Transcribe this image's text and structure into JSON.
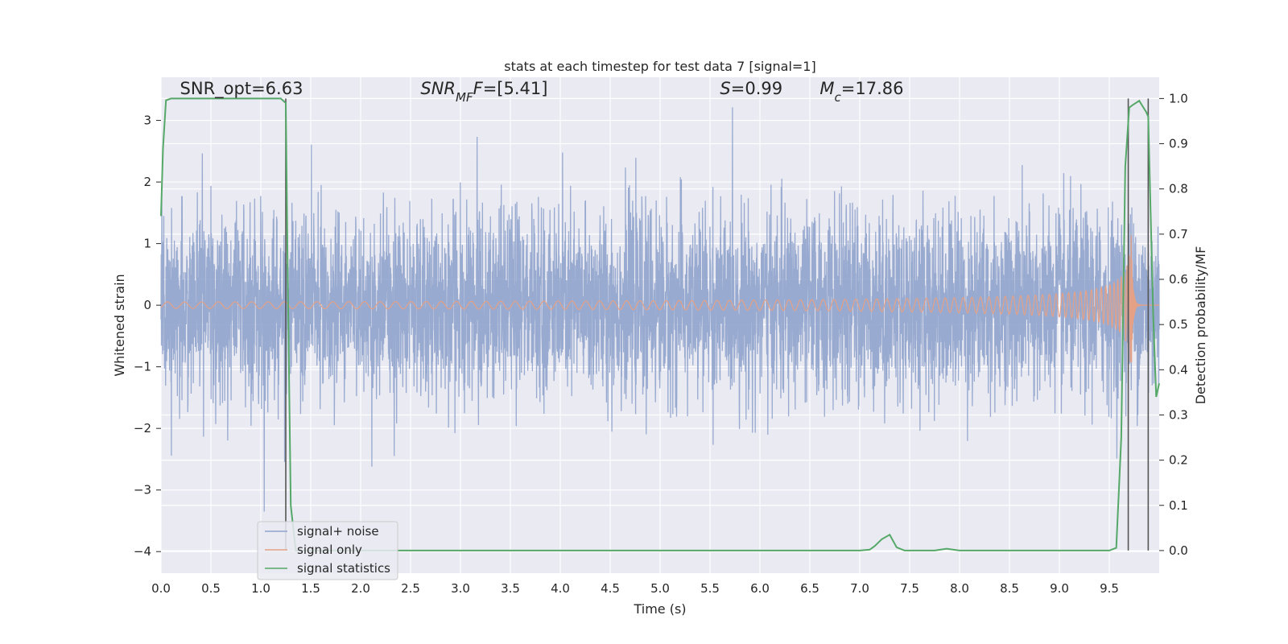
{
  "chart_data": {
    "type": "line",
    "title": "stats at each timestep for test data 7 [signal=1]",
    "xlabel": "Time (s)",
    "ylabel": "Whitened strain",
    "y2label": "Detection probability/MF",
    "xlim": [
      0,
      10
    ],
    "ylim": [
      -4.35,
      3.7
    ],
    "y2lim": [
      -0.05,
      1.047
    ],
    "grid": true,
    "x_ticks": [
      "0.0",
      "0.5",
      "1.0",
      "1.5",
      "2.0",
      "2.5",
      "3.0",
      "3.5",
      "4.0",
      "4.5",
      "5.0",
      "5.5",
      "6.0",
      "6.5",
      "7.0",
      "7.5",
      "8.0",
      "8.5",
      "9.0",
      "9.5"
    ],
    "x_tick_values": [
      0,
      0.5,
      1,
      1.5,
      2,
      2.5,
      3,
      3.5,
      4,
      4.5,
      5,
      5.5,
      6,
      6.5,
      7,
      7.5,
      8,
      8.5,
      9,
      9.5
    ],
    "y_ticks": [
      "−4",
      "−3",
      "−2",
      "−1",
      "0",
      "1",
      "2",
      "3"
    ],
    "y_tick_values": [
      -4,
      -3,
      -2,
      -1,
      0,
      1,
      2,
      3
    ],
    "y2_ticks": [
      "0.0",
      "0.1",
      "0.2",
      "0.3",
      "0.4",
      "0.5",
      "0.6",
      "0.7",
      "0.8",
      "0.9",
      "1.0"
    ],
    "y2_tick_values": [
      0,
      0.1,
      0.2,
      0.3,
      0.4,
      0.5,
      0.6,
      0.7,
      0.8,
      0.9,
      1.0
    ],
    "annotations": [
      {
        "parts": [
          {
            "t": "SNR_opt=6.63",
            "style": "normal"
          }
        ],
        "x": 0.19,
        "y2": 1.01
      },
      {
        "parts": [
          {
            "t": "SNR",
            "style": "italic"
          },
          {
            "t": "MF",
            "style": "italic-sub"
          },
          {
            "t": "F",
            "style": "italic"
          },
          {
            "t": "=[5.41]",
            "style": "normal"
          }
        ],
        "x": 2.6,
        "y2": 1.01
      },
      {
        "parts": [
          {
            "t": "S",
            "style": "italic"
          },
          {
            "t": "=0.99",
            "style": "normal"
          }
        ],
        "x": 5.6,
        "y2": 1.01
      },
      {
        "parts": [
          {
            "t": "M",
            "style": "italic"
          },
          {
            "t": "c",
            "style": "italic-sub"
          },
          {
            "t": "=17.86",
            "style": "normal"
          }
        ],
        "x": 6.6,
        "y2": 1.01
      }
    ],
    "vlines": [
      1.25,
      9.69,
      9.89
    ],
    "legend": {
      "placement": "lower-left",
      "entries": [
        {
          "name": "signal+ noise",
          "color": "#8fa3cc"
        },
        {
          "name": "signal only",
          "color": "#e5a186"
        },
        {
          "name": "signal statistics",
          "color": "#55a868"
        }
      ]
    },
    "series": [
      {
        "name": "signal+ noise",
        "axis": "left",
        "color": "#8fa3cc",
        "render": "dense-noise",
        "envelope_std": 0.75,
        "range": [
          -3.35,
          3.35
        ]
      },
      {
        "name": "signal only",
        "axis": "left",
        "color": "#e5a186",
        "render": "chirp",
        "chirp": {
          "t_merge": 9.72,
          "amp_max": 1.15,
          "x_start": 6.6
        }
      },
      {
        "name": "signal statistics",
        "axis": "right",
        "color": "#55a868",
        "x": [
          0.0,
          0.02,
          0.05,
          0.1,
          0.2,
          0.4,
          0.6,
          0.8,
          1.0,
          1.2,
          1.2,
          1.25,
          1.27,
          1.3,
          1.35,
          1.45,
          2.0,
          3.0,
          4.0,
          5.0,
          6.0,
          7.0,
          7.1,
          7.15,
          7.22,
          7.3,
          7.37,
          7.45,
          7.6,
          7.75,
          7.87,
          8.0,
          8.5,
          9.0,
          9.5,
          9.57,
          9.62,
          9.66,
          9.7,
          9.73,
          9.8,
          9.87,
          9.89,
          9.94,
          9.97,
          10.0
        ],
        "y": [
          0.74,
          0.89,
          0.996,
          1.0,
          1.0,
          1.0,
          1.0,
          1.0,
          1.0,
          1.0,
          1.0,
          0.99,
          0.6,
          0.1,
          0.0,
          0.0,
          0.0,
          0.0,
          0.0,
          0.0,
          0.0,
          0.0,
          0.002,
          0.01,
          0.025,
          0.035,
          0.007,
          0.0,
          0.0,
          0.0,
          0.004,
          0.0,
          0.0,
          0.0,
          0.0,
          0.006,
          0.25,
          0.85,
          0.98,
          0.985,
          0.995,
          0.97,
          0.96,
          0.52,
          0.34,
          0.37
        ]
      }
    ]
  }
}
